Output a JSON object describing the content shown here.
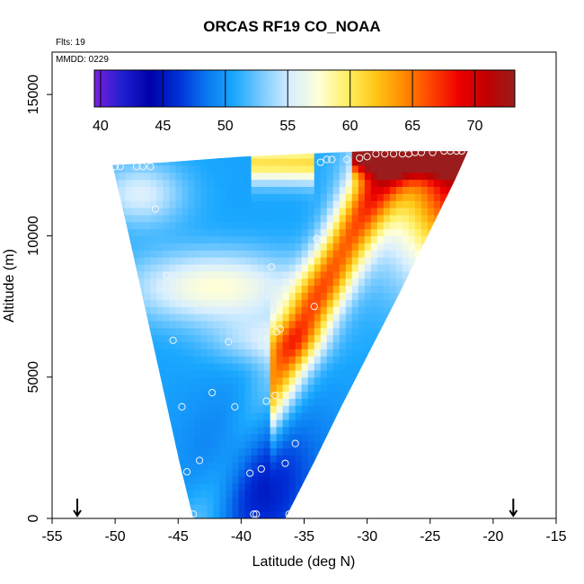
{
  "chart_data": {
    "type": "heatmap",
    "title": "ORCAS RF19 CO_NOAA",
    "flights_label": "Flts: 19",
    "date_label": "MMDD: 0229",
    "xlabel": "Latitude (deg N)",
    "ylabel": "Altitude (m)",
    "xlim": [
      -55,
      -15
    ],
    "ylim": [
      0,
      16500
    ],
    "x_ticks": [
      -55,
      -50,
      -45,
      -40,
      -35,
      -30,
      -25,
      -20,
      -15
    ],
    "y_ticks": [
      0,
      5000,
      10000,
      15000
    ],
    "colorbar": {
      "range": [
        39.5,
        73.2
      ],
      "ticks": [
        40,
        45,
        50,
        55,
        60,
        65,
        70
      ],
      "colors": [
        "#7b1fdc",
        "#1f1fd0",
        "#0000a8",
        "#0030d8",
        "#0a78f0",
        "#1aa8ff",
        "#7cccff",
        "#d8eeff",
        "#ffffd8",
        "#fff066",
        "#ffc818",
        "#ff8c00",
        "#ff4400",
        "#ee0000",
        "#c00000",
        "#9a1c1c"
      ]
    },
    "grid_field": {
      "lat_min": -50.2,
      "lat_max": -22,
      "alt_min": 0,
      "alt_max": 13000,
      "left_edge": [
        [
          0,
          -43.8
        ],
        [
          2000,
          -44.9
        ],
        [
          4000,
          -45.9
        ],
        [
          6000,
          -46.9
        ],
        [
          8000,
          -47.9
        ],
        [
          10000,
          -48.9
        ],
        [
          12500,
          -50.2
        ]
      ],
      "right_edge": [
        [
          0,
          -36.5
        ],
        [
          2000,
          -34.2
        ],
        [
          4000,
          -32.0
        ],
        [
          6000,
          -29.7
        ],
        [
          8000,
          -27.4
        ],
        [
          10000,
          -25.2
        ],
        [
          12000,
          -23.0
        ],
        [
          13000,
          -22.0
        ]
      ],
      "top_edge": [
        [
          -50.2,
          12500
        ],
        [
          -46.0,
          12600
        ],
        [
          -40.0,
          12800
        ],
        [
          -30.0,
          13000
        ],
        [
          -22.0,
          13000
        ]
      ]
    },
    "observations": [
      {
        "lat": -50.0,
        "alt": 12450
      },
      {
        "lat": -49.6,
        "alt": 12450
      },
      {
        "lat": -48.3,
        "alt": 12450
      },
      {
        "lat": -47.8,
        "alt": 12450
      },
      {
        "lat": -47.2,
        "alt": 12450
      },
      {
        "lat": -46.8,
        "alt": 10950
      },
      {
        "lat": -45.9,
        "alt": 8600
      },
      {
        "lat": -45.4,
        "alt": 6300
      },
      {
        "lat": -44.7,
        "alt": 3950
      },
      {
        "lat": -44.3,
        "alt": 1650
      },
      {
        "lat": -43.8,
        "alt": 150
      },
      {
        "lat": -43.3,
        "alt": 2050
      },
      {
        "lat": -42.3,
        "alt": 4450
      },
      {
        "lat": -41.0,
        "alt": 6250
      },
      {
        "lat": -40.5,
        "alt": 3950
      },
      {
        "lat": -39.3,
        "alt": 1600
      },
      {
        "lat": -39.0,
        "alt": 150
      },
      {
        "lat": -38.8,
        "alt": 150
      },
      {
        "lat": -38.4,
        "alt": 1750
      },
      {
        "lat": -38.0,
        "alt": 4150
      },
      {
        "lat": -37.6,
        "alt": 8900
      },
      {
        "lat": -37.2,
        "alt": 6600
      },
      {
        "lat": -36.9,
        "alt": 6700
      },
      {
        "lat": -37.3,
        "alt": 4350
      },
      {
        "lat": -36.5,
        "alt": 1950
      },
      {
        "lat": -36.2,
        "alt": 150
      },
      {
        "lat": -35.7,
        "alt": 2650
      },
      {
        "lat": -34.2,
        "alt": 7500
      },
      {
        "lat": -34.0,
        "alt": 9900
      },
      {
        "lat": -33.7,
        "alt": 12600
      },
      {
        "lat": -33.2,
        "alt": 12700
      },
      {
        "lat": -32.8,
        "alt": 12700
      },
      {
        "lat": -31.6,
        "alt": 12700
      },
      {
        "lat": -30.6,
        "alt": 12750
      },
      {
        "lat": -30.0,
        "alt": 12800
      },
      {
        "lat": -29.3,
        "alt": 12900
      },
      {
        "lat": -28.6,
        "alt": 12900
      },
      {
        "lat": -27.9,
        "alt": 12900
      },
      {
        "lat": -27.2,
        "alt": 12900
      },
      {
        "lat": -26.7,
        "alt": 12900
      },
      {
        "lat": -26.2,
        "alt": 12950
      },
      {
        "lat": -25.7,
        "alt": 12950
      },
      {
        "lat": -24.8,
        "alt": 12950
      },
      {
        "lat": -23.9,
        "alt": 13000
      },
      {
        "lat": -23.4,
        "alt": 13000
      },
      {
        "lat": -22.9,
        "alt": 13000
      },
      {
        "lat": -22.5,
        "alt": 13000
      }
    ],
    "arrow_markers": [
      -53.0,
      -18.4
    ]
  }
}
